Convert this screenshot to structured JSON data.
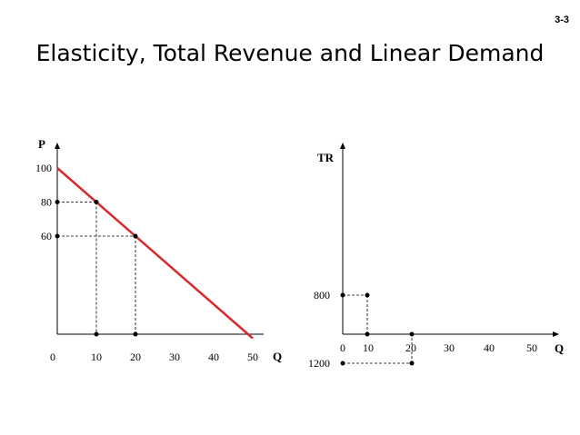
{
  "slide": {
    "number": "3-3",
    "title": "Elasticity, Total Revenue and Linear Demand"
  },
  "chart_data": [
    {
      "type": "line",
      "ylabel": "P",
      "xlabel": "Q",
      "xlim": [
        0,
        50
      ],
      "ylim": [
        0,
        100
      ],
      "x_ticks": [
        0,
        10,
        20,
        30,
        40,
        50
      ],
      "y_ticks": [
        60,
        80,
        100
      ],
      "line": {
        "x": [
          0,
          50
        ],
        "y": [
          100,
          0
        ],
        "color": "#d62b2b"
      },
      "points": [
        {
          "x": 10,
          "y": 80
        },
        {
          "x": 20,
          "y": 60
        }
      ]
    },
    {
      "type": "scatter",
      "ylabel": "TR",
      "xlabel": "Q",
      "xlim": [
        0,
        50
      ],
      "y_ticks": [
        800,
        1200
      ],
      "x_ticks": [
        0,
        10,
        20,
        30,
        40,
        50
      ],
      "points": [
        {
          "x": 10,
          "y": 800
        },
        {
          "x": 20,
          "y": 1200
        }
      ]
    }
  ]
}
